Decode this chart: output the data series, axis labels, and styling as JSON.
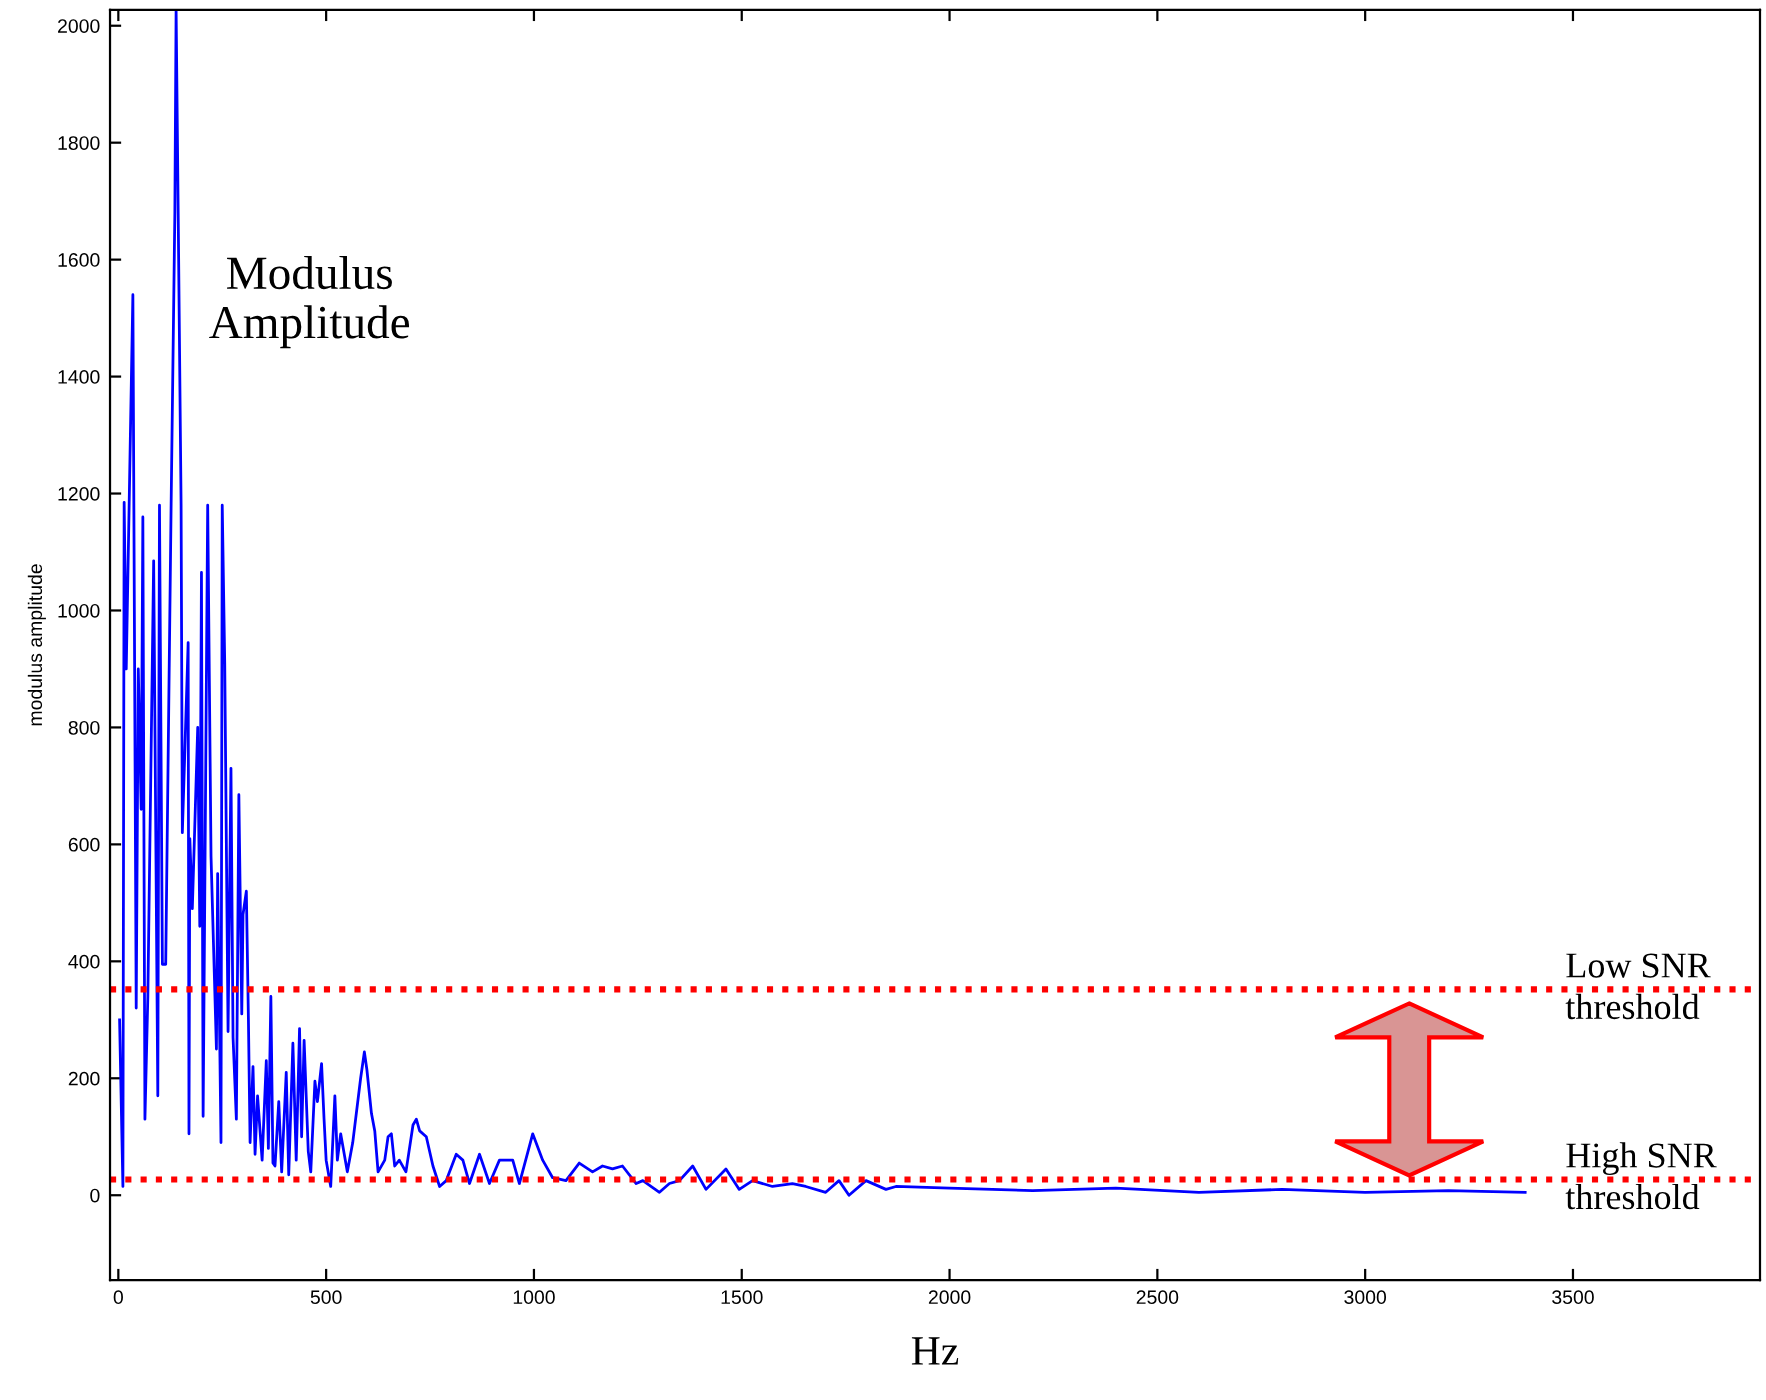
{
  "chart_data": {
    "type": "line",
    "xlabel": "Hz",
    "ylabel": "modulus amplitude",
    "xlim": [
      -20,
      3950
    ],
    "ylim": [
      -145,
      2027
    ],
    "xticks": [
      0,
      500,
      1000,
      1500,
      2000,
      2500,
      3000,
      3500
    ],
    "yticks": [
      0,
      200,
      400,
      600,
      800,
      1000,
      1200,
      1400,
      1600,
      1800,
      2000
    ],
    "grid": false,
    "tick_labels": true,
    "x": [
      3,
      11,
      14,
      19,
      35,
      43,
      48,
      55,
      59,
      64,
      71,
      85,
      95,
      99,
      106,
      114,
      127,
      136,
      139,
      144,
      151,
      154,
      168,
      170,
      172,
      178,
      191,
      196,
      200,
      204,
      215,
      223,
      236,
      239,
      247,
      250,
      256,
      264,
      271,
      276,
      284,
      290,
      297,
      300,
      308,
      313,
      317,
      324,
      329,
      335,
      346,
      356,
      361,
      367,
      372,
      377,
      386,
      393,
      404,
      410,
      420,
      428,
      436,
      441,
      447,
      457,
      463,
      473,
      479,
      489,
      495,
      500,
      511,
      521,
      527,
      535,
      551,
      564,
      583,
      592,
      598,
      609,
      617,
      625,
      641,
      649,
      657,
      665,
      676,
      692,
      709,
      717,
      725,
      741,
      757,
      773,
      789,
      813,
      829,
      845,
      869,
      893,
      917,
      949,
      965,
      997,
      1021,
      1045,
      1077,
      1109,
      1141,
      1165,
      1189,
      1213,
      1246,
      1262,
      1302,
      1326,
      1350,
      1382,
      1414,
      1462,
      1494,
      1526,
      1574,
      1622,
      1654,
      1702,
      1734,
      1758,
      1799,
      1847,
      1871,
      2000,
      2200,
      2400,
      2600,
      2800,
      3000,
      3200,
      3385
    ],
    "series": [
      {
        "color": "#0000ff",
        "line_style": "solid",
        "values": [
          300,
          15,
          1185,
          900,
          1540,
          320,
          900,
          660,
          1160,
          130,
          340,
          1085,
          170,
          1180,
          395,
          395,
          1180,
          1680,
          2027,
          1680,
          1180,
          620,
          945,
          105,
          610,
          490,
          800,
          460,
          1065,
          135,
          1180,
          580,
          250,
          550,
          90,
          1180,
          910,
          280,
          730,
          270,
          130,
          685,
          310,
          480,
          520,
          300,
          90,
          220,
          70,
          170,
          60,
          230,
          80,
          340,
          55,
          50,
          160,
          40,
          210,
          35,
          260,
          60,
          285,
          100,
          265,
          75,
          40,
          195,
          160,
          225,
          130,
          60,
          15,
          170,
          60,
          105,
          40,
          90,
          200,
          245,
          215,
          140,
          110,
          40,
          60,
          100,
          105,
          50,
          60,
          40,
          120,
          130,
          110,
          100,
          50,
          15,
          25,
          70,
          60,
          20,
          70,
          20,
          60,
          60,
          20,
          105,
          60,
          30,
          25,
          55,
          40,
          50,
          45,
          50,
          20,
          25,
          5,
          20,
          25,
          50,
          10,
          45,
          10,
          25,
          15,
          20,
          15,
          5,
          25,
          0,
          25,
          10,
          15,
          12,
          8,
          12,
          5,
          10,
          5,
          8,
          5
        ]
      }
    ],
    "ref_lines": [
      {
        "axis": "y",
        "value": 352,
        "label": "Low SNR threshold",
        "color": "#ff0000",
        "line_style": "dotted"
      },
      {
        "axis": "y",
        "value": 27,
        "label": "High SNR threshold",
        "color": "#ff0000",
        "line_style": "dotted"
      }
    ],
    "annotations": [
      "Modulus Amplitude"
    ]
  }
}
